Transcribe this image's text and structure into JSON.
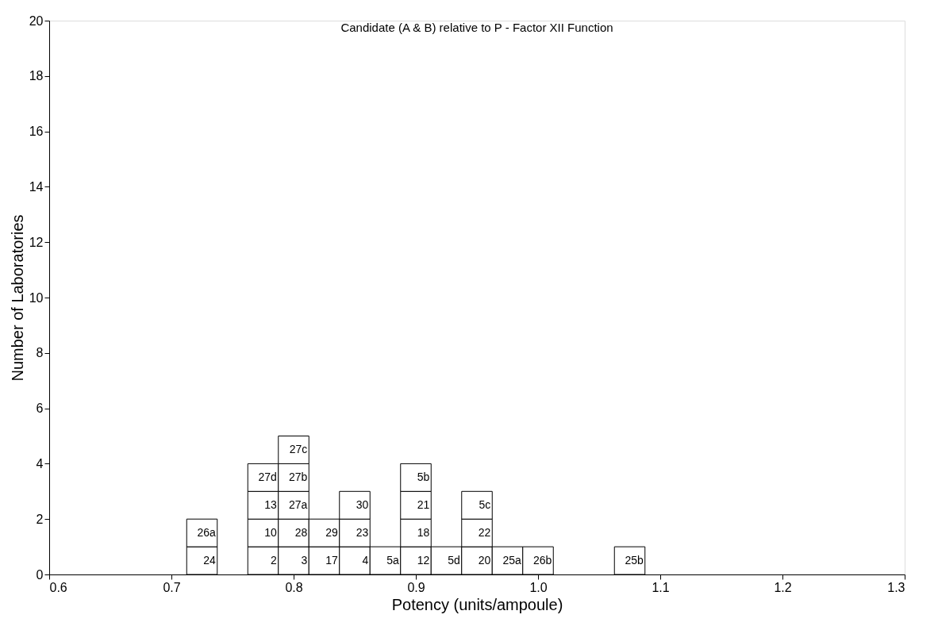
{
  "chart_data": {
    "type": "bar",
    "stacked": true,
    "title": "Candidate (A & B) relative to P - Factor XII Function",
    "xlabel": "Potency (units/ampoule)",
    "ylabel": "Number of Laboratories",
    "x": [
      0.725,
      0.775,
      0.8,
      0.825,
      0.85,
      0.875,
      0.9,
      0.925,
      0.95,
      0.975,
      1.0,
      1.075
    ],
    "series": [
      {
        "name": "24",
        "color": "#ffffff",
        "values": [
          1,
          null,
          null,
          null,
          null,
          null,
          null,
          null,
          null,
          null,
          null,
          null
        ]
      },
      {
        "name": "26a",
        "color": "#ffffff",
        "values": [
          1,
          null,
          null,
          null,
          null,
          null,
          null,
          null,
          null,
          null,
          null,
          null
        ]
      },
      {
        "name": "2",
        "color": "#ffffff",
        "values": [
          null,
          1,
          null,
          null,
          null,
          null,
          null,
          null,
          null,
          null,
          null,
          null
        ]
      },
      {
        "name": "10",
        "color": "#ffffff",
        "values": [
          null,
          1,
          null,
          null,
          null,
          null,
          null,
          null,
          null,
          null,
          null,
          null
        ]
      },
      {
        "name": "13",
        "color": "#ffffff",
        "values": [
          null,
          1,
          null,
          null,
          null,
          null,
          null,
          null,
          null,
          null,
          null,
          null
        ]
      },
      {
        "name": "27d",
        "color": "#ffffff",
        "values": [
          null,
          1,
          null,
          null,
          null,
          null,
          null,
          null,
          null,
          null,
          null,
          null
        ]
      },
      {
        "name": "3",
        "color": "#ffffff",
        "values": [
          null,
          null,
          1,
          null,
          null,
          null,
          null,
          null,
          null,
          null,
          null,
          null
        ]
      },
      {
        "name": "28",
        "color": "#ffffff",
        "values": [
          null,
          null,
          1,
          null,
          null,
          null,
          null,
          null,
          null,
          null,
          null,
          null
        ]
      },
      {
        "name": "27a",
        "color": "#ffffff",
        "values": [
          null,
          null,
          1,
          null,
          null,
          null,
          null,
          null,
          null,
          null,
          null,
          null
        ]
      },
      {
        "name": "27b",
        "color": "#ffffff",
        "values": [
          null,
          null,
          1,
          null,
          null,
          null,
          null,
          null,
          null,
          null,
          null,
          null
        ]
      },
      {
        "name": "27c",
        "color": "#ffffff",
        "values": [
          null,
          null,
          1,
          null,
          null,
          null,
          null,
          null,
          null,
          null,
          null,
          null
        ]
      },
      {
        "name": "17",
        "color": "#ffffff",
        "values": [
          null,
          null,
          null,
          1,
          null,
          null,
          null,
          null,
          null,
          null,
          null,
          null
        ]
      },
      {
        "name": "29",
        "color": "#ffffff",
        "values": [
          null,
          null,
          null,
          1,
          null,
          null,
          null,
          null,
          null,
          null,
          null,
          null
        ]
      },
      {
        "name": "4",
        "color": "#ffffff",
        "values": [
          null,
          null,
          null,
          null,
          1,
          null,
          null,
          null,
          null,
          null,
          null,
          null
        ]
      },
      {
        "name": "23",
        "color": "#ffffff",
        "values": [
          null,
          null,
          null,
          null,
          1,
          null,
          null,
          null,
          null,
          null,
          null,
          null
        ]
      },
      {
        "name": "30",
        "color": "#ffffff",
        "values": [
          null,
          null,
          null,
          null,
          1,
          null,
          null,
          null,
          null,
          null,
          null,
          null
        ]
      },
      {
        "name": "5a",
        "color": "#ffffff",
        "values": [
          null,
          null,
          null,
          null,
          null,
          1,
          null,
          null,
          null,
          null,
          null,
          null
        ]
      },
      {
        "name": "12",
        "color": "#ffffff",
        "values": [
          null,
          null,
          null,
          null,
          null,
          null,
          1,
          null,
          null,
          null,
          null,
          null
        ]
      },
      {
        "name": "18",
        "color": "#ffffff",
        "values": [
          null,
          null,
          null,
          null,
          null,
          null,
          1,
          null,
          null,
          null,
          null,
          null
        ]
      },
      {
        "name": "21",
        "color": "#ffffff",
        "values": [
          null,
          null,
          null,
          null,
          null,
          null,
          1,
          null,
          null,
          null,
          null,
          null
        ]
      },
      {
        "name": "5b",
        "color": "#ffffff",
        "values": [
          null,
          null,
          null,
          null,
          null,
          null,
          1,
          null,
          null,
          null,
          null,
          null
        ]
      },
      {
        "name": "5d",
        "color": "#ffffff",
        "values": [
          null,
          null,
          null,
          null,
          null,
          null,
          null,
          1,
          null,
          null,
          null,
          null
        ]
      },
      {
        "name": "20",
        "color": "#ffffff",
        "values": [
          null,
          null,
          null,
          null,
          null,
          null,
          null,
          null,
          1,
          null,
          null,
          null
        ]
      },
      {
        "name": "22",
        "color": "#ffffff",
        "values": [
          null,
          null,
          null,
          null,
          null,
          null,
          null,
          null,
          1,
          null,
          null,
          null
        ]
      },
      {
        "name": "5c",
        "color": "#ffffff",
        "values": [
          null,
          null,
          null,
          null,
          null,
          null,
          null,
          null,
          1,
          null,
          null,
          null
        ]
      },
      {
        "name": "25a",
        "color": "#ffffff",
        "values": [
          null,
          null,
          null,
          null,
          null,
          null,
          null,
          null,
          null,
          1,
          null,
          null
        ]
      },
      {
        "name": "26b",
        "color": "#ffffff",
        "values": [
          null,
          null,
          null,
          null,
          null,
          null,
          null,
          null,
          null,
          null,
          1,
          null
        ]
      },
      {
        "name": "25b",
        "color": "#ffffff",
        "values": [
          null,
          null,
          null,
          null,
          null,
          null,
          null,
          null,
          null,
          null,
          null,
          1
        ]
      }
    ],
    "xlim": [
      0.6,
      1.3
    ],
    "xticks": [
      0.6,
      0.7,
      0.8,
      0.9,
      {
        "value": 1.0,
        "label": "1.0"
      },
      1.1,
      1.2,
      1.3
    ],
    "ylim": [
      0,
      20
    ],
    "yticks": [
      0,
      2,
      4,
      6,
      8,
      10,
      12,
      14,
      16,
      18,
      20
    ],
    "grid": false
  }
}
